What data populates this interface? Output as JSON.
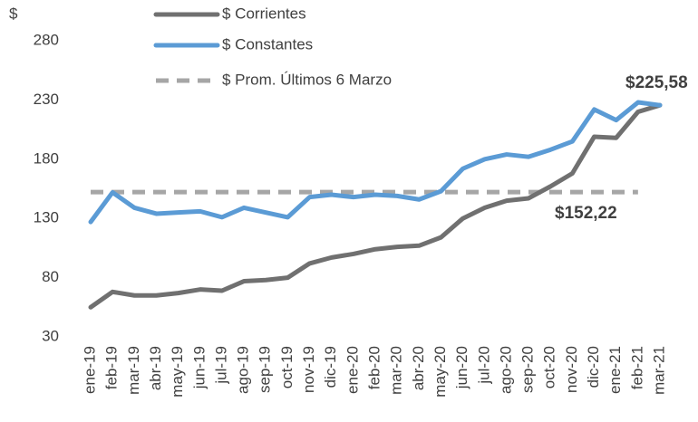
{
  "chart_data": {
    "type": "line",
    "y_label": "$",
    "categories": [
      "ene-19",
      "feb-19",
      "mar-19",
      "abr-19",
      "may-19",
      "jun-19",
      "jul-19",
      "ago-19",
      "sep-19",
      "oct-19",
      "nov-19",
      "dic-19",
      "ene-20",
      "feb-20",
      "mar-20",
      "abr-20",
      "may-20",
      "jun-20",
      "jul-20",
      "ago-20",
      "sep-20",
      "oct-20",
      "nov-20",
      "dic-20",
      "ene-21",
      "feb-21",
      "mar-21"
    ],
    "series": [
      {
        "name": "$ Corrientes",
        "color": "#707070",
        "dashed": false,
        "values": [
          55,
          68,
          65,
          65,
          67,
          70,
          69,
          77,
          78,
          80,
          92,
          97,
          100,
          104,
          106,
          107,
          114,
          130,
          139,
          145,
          147,
          157,
          168,
          199,
          198,
          220,
          225.58
        ]
      },
      {
        "name": "$ Constantes",
        "color": "#5b9bd5",
        "dashed": false,
        "values": [
          127,
          152,
          139,
          134,
          135,
          136,
          131,
          139,
          135,
          131,
          148,
          150,
          148,
          150,
          149,
          146,
          153,
          172,
          180,
          184,
          182,
          188,
          195,
          222,
          213,
          228,
          225.58
        ]
      },
      {
        "name": "$ Prom. Últimos 6 Marzo",
        "color": "#a6a6a6",
        "dashed": true,
        "values": [
          152.22,
          152.22,
          152.22,
          152.22,
          152.22,
          152.22,
          152.22,
          152.22,
          152.22,
          152.22,
          152.22,
          152.22,
          152.22,
          152.22,
          152.22,
          152.22,
          152.22,
          152.22,
          152.22,
          152.22,
          152.22,
          152.22,
          152.22,
          152.22,
          152.22,
          152.22,
          null
        ]
      }
    ],
    "annotations": [
      "$225,58",
      "$152,22"
    ],
    "ylim": [
      30,
      280
    ],
    "yticks": [
      30,
      80,
      130,
      180,
      230,
      280
    ],
    "grid": false,
    "legend": "top"
  }
}
